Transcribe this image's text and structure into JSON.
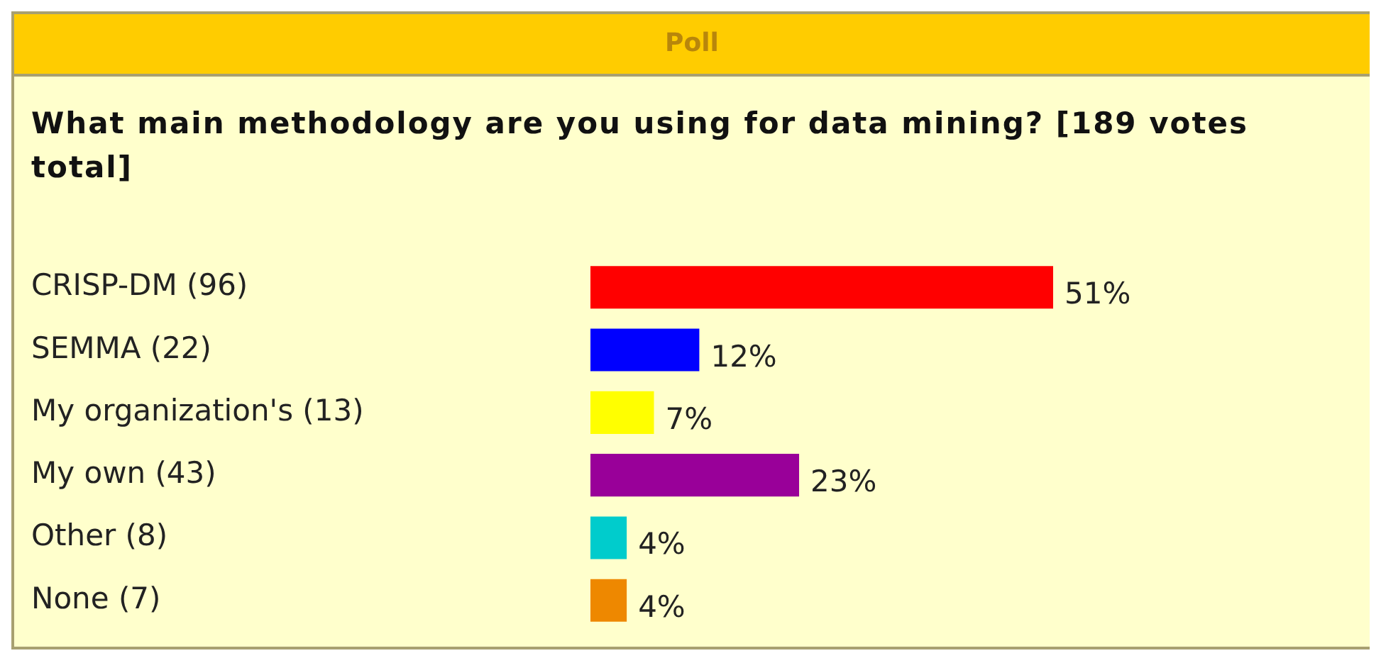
{
  "chart_data": {
    "type": "bar",
    "orientation": "horizontal",
    "title": "Poll",
    "subtitle": "What main methodology are you using for data mining? [189 votes total]",
    "categories": [
      "CRISP-DM (96)",
      "SEMMA (22)",
      "My organization's (13)",
      "My own (43)",
      "Other (8)",
      "None (7)"
    ],
    "values": [
      51,
      12,
      7,
      23,
      4,
      4
    ],
    "colors": [
      "#ff0000",
      "#0000ff",
      "#ffff00",
      "#990099",
      "#00cccc",
      "#ee8800"
    ],
    "value_labels": [
      "51%",
      "12%",
      "7%",
      "23%",
      "4%",
      "4%"
    ]
  }
}
